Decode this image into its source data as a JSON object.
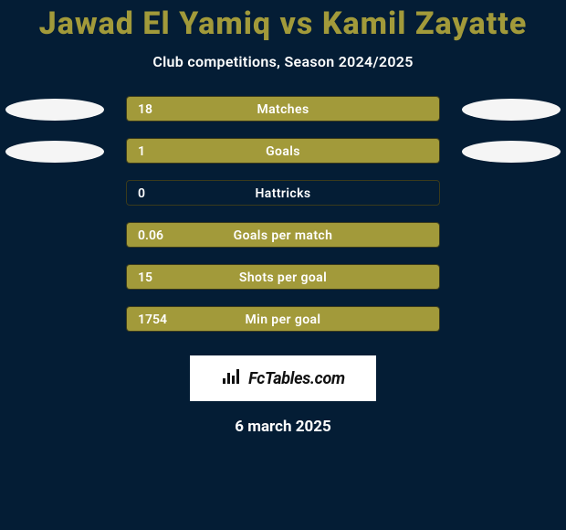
{
  "title": "Jawad El Yamiq vs Kamil Zayatte",
  "subtitle": "Club competitions, Season 2024/2025",
  "date": "6 march 2025",
  "logo_text": "FcTables.com",
  "background_color": "#041d35",
  "title_color": "#a29a3a",
  "text_color": "#ffffff",
  "ellipse_color": "#f5f5f5",
  "stats": [
    {
      "label": "Matches",
      "value": "18",
      "fill_pct": 100,
      "fill_color": "#a29a3a",
      "show_left_ellipse": true,
      "show_right_ellipse": true
    },
    {
      "label": "Goals",
      "value": "1",
      "fill_pct": 100,
      "fill_color": "#a29a3a",
      "show_left_ellipse": true,
      "show_right_ellipse": true
    },
    {
      "label": "Hattricks",
      "value": "0",
      "fill_pct": 0,
      "fill_color": "#a29a3a",
      "show_left_ellipse": false,
      "show_right_ellipse": false
    },
    {
      "label": "Goals per match",
      "value": "0.06",
      "fill_pct": 100,
      "fill_color": "#a29a3a",
      "show_left_ellipse": false,
      "show_right_ellipse": false
    },
    {
      "label": "Shots per goal",
      "value": "15",
      "fill_pct": 100,
      "fill_color": "#a29a3a",
      "show_left_ellipse": false,
      "show_right_ellipse": false
    },
    {
      "label": "Min per goal",
      "value": "1754",
      "fill_pct": 100,
      "fill_color": "#a29a3a",
      "show_left_ellipse": false,
      "show_right_ellipse": false
    }
  ]
}
